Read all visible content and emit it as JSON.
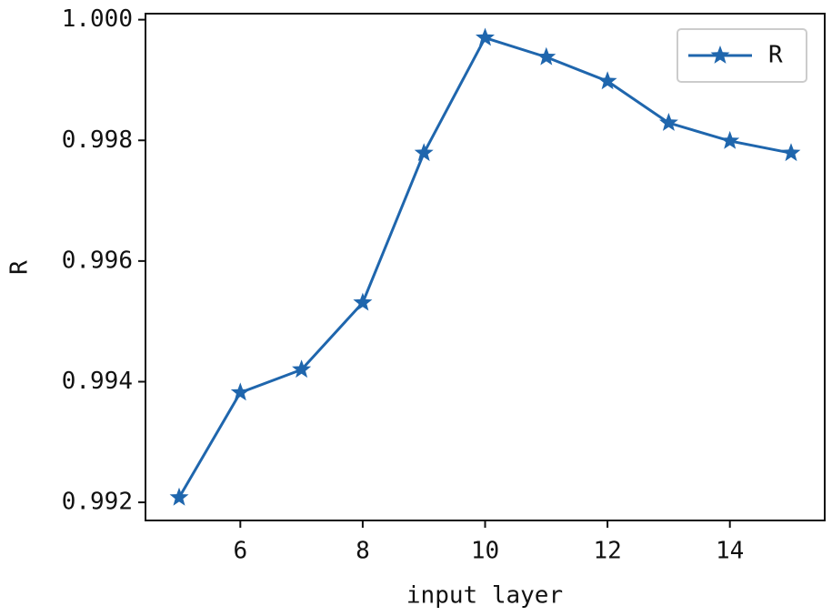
{
  "chart_data": {
    "type": "line",
    "x_label": "input layer",
    "y_label": "R",
    "x": [
      5,
      6,
      7,
      8,
      9,
      10,
      11,
      12,
      13,
      14,
      15
    ],
    "series": [
      {
        "name": "R",
        "color": "#1f66ad",
        "marker": "star",
        "values": [
          0.99208,
          0.99382,
          0.9942,
          0.99531,
          0.99779,
          0.9997,
          0.99938,
          0.99898,
          0.99829,
          0.99799,
          0.99779
        ]
      }
    ],
    "xlim": [
      4.45,
      15.55
    ],
    "xticks": [
      6,
      8,
      10,
      12,
      14
    ],
    "ylim": [
      0.9917,
      1.0001
    ],
    "yticks": [
      0.992,
      0.994,
      0.996,
      0.998,
      {
        "value": 1,
        "label": "1.000"
      }
    ],
    "grid": false,
    "legend": "upper right"
  }
}
